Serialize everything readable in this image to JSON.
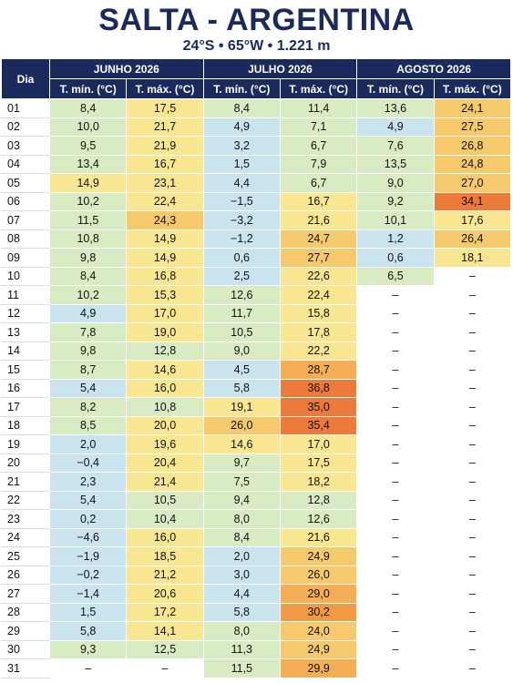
{
  "header": {
    "title": "SALTA - ARGENTINA",
    "subtitle": "24°S • 65°W • 1.221 m"
  },
  "table": {
    "day_header": "Dia",
    "months": [
      "JUNHO 2026",
      "JULHO 2026",
      "AGOSTO 2026"
    ],
    "columns": [
      "T. mín. (°C)",
      "T. máx. (°C)"
    ],
    "rows": [
      [
        "01",
        "8,4",
        "17,5",
        "8,4",
        "11,4",
        "13,6",
        "24,1"
      ],
      [
        "02",
        "10,0",
        "21,7",
        "4,9",
        "7,1",
        "4,9",
        "27,5"
      ],
      [
        "03",
        "9,5",
        "21,9",
        "3,2",
        "6,7",
        "7,6",
        "26,8"
      ],
      [
        "04",
        "13,4",
        "16,7",
        "1,5",
        "7,9",
        "13,5",
        "24,8"
      ],
      [
        "05",
        "14,9",
        "23,1",
        "4,4",
        "6,7",
        "9,0",
        "27,0"
      ],
      [
        "06",
        "10,2",
        "22,4",
        "−1,5",
        "16,7",
        "9,2",
        "34,1"
      ],
      [
        "07",
        "11,5",
        "24,3",
        "−3,2",
        "21,6",
        "10,1",
        "17,6"
      ],
      [
        "08",
        "10,8",
        "14,9",
        "−1,2",
        "24,7",
        "1,2",
        "26,4"
      ],
      [
        "09",
        "9,8",
        "14,9",
        "0,6",
        "27,7",
        "0,6",
        "18,1"
      ],
      [
        "10",
        "8,4",
        "16,8",
        "2,5",
        "22,6",
        "6,5",
        "–"
      ],
      [
        "11",
        "10,2",
        "15,3",
        "12,6",
        "22,4",
        "–",
        "–"
      ],
      [
        "12",
        "4,9",
        "17,0",
        "11,7",
        "15,8",
        "–",
        "–"
      ],
      [
        "13",
        "7,8",
        "19,0",
        "10,5",
        "17,8",
        "–",
        "–"
      ],
      [
        "14",
        "9,8",
        "12,8",
        "9,0",
        "22,2",
        "–",
        "–"
      ],
      [
        "15",
        "8,7",
        "14,6",
        "4,5",
        "28,7",
        "–",
        "–"
      ],
      [
        "16",
        "5,4",
        "16,0",
        "5,8",
        "36,8",
        "–",
        "–"
      ],
      [
        "17",
        "8,2",
        "10,8",
        "19,1",
        "35,0",
        "–",
        "–"
      ],
      [
        "18",
        "8,5",
        "20,0",
        "26,0",
        "35,4",
        "–",
        "–"
      ],
      [
        "19",
        "2,0",
        "19,6",
        "14,6",
        "17,0",
        "–",
        "–"
      ],
      [
        "20",
        "−0,4",
        "20,4",
        "9,7",
        "17,5",
        "–",
        "–"
      ],
      [
        "21",
        "2,3",
        "21,4",
        "7,5",
        "18,2",
        "–",
        "–"
      ],
      [
        "22",
        "5,4",
        "10,5",
        "9,4",
        "12,8",
        "–",
        "–"
      ],
      [
        "23",
        "0,2",
        "10,4",
        "8,0",
        "12,6",
        "–",
        "–"
      ],
      [
        "24",
        "−4,6",
        "16,0",
        "8,4",
        "21,6",
        "–",
        "–"
      ],
      [
        "25",
        "−1,9",
        "18,5",
        "2,0",
        "24,9",
        "–",
        "–"
      ],
      [
        "26",
        "−0,2",
        "21,2",
        "3,0",
        "26,0",
        "–",
        "–"
      ],
      [
        "27",
        "−1,4",
        "20,6",
        "4,4",
        "29,0",
        "–",
        "–"
      ],
      [
        "28",
        "1,5",
        "17,2",
        "5,8",
        "30,2",
        "–",
        "–"
      ],
      [
        "29",
        "5,8",
        "14,1",
        "8,0",
        "24,0",
        "–",
        "–"
      ],
      [
        "30",
        "9,3",
        "12,5",
        "11,3",
        "24,9",
        "–",
        "–"
      ],
      [
        "31",
        "–",
        "–",
        "11,5",
        "29,9",
        "–",
        "–"
      ]
    ]
  }
}
